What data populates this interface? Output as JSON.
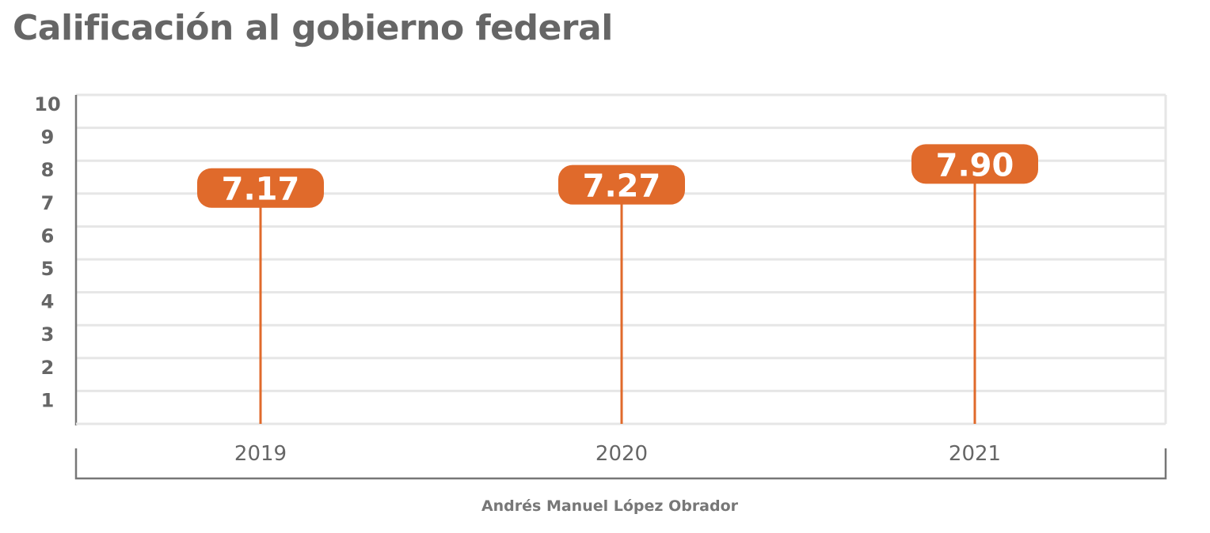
{
  "chart_data": {
    "type": "lollipop",
    "title": "Calificación al gobierno federal",
    "categories": [
      "2019",
      "2020",
      "2021"
    ],
    "values": [
      7.17,
      7.27,
      7.9
    ],
    "value_labels": [
      "7.17",
      "7.27",
      "7.90"
    ],
    "group_label": "Andrés Manuel López Obrador",
    "yticks": [
      1,
      2,
      3,
      4,
      5,
      6,
      7,
      8,
      9,
      10
    ],
    "ylim": [
      0,
      10
    ],
    "grid": true,
    "colors": {
      "marker": "#e06a2b",
      "text": "#666666",
      "grid": "#e6e6e6",
      "axis": "#777777"
    }
  }
}
